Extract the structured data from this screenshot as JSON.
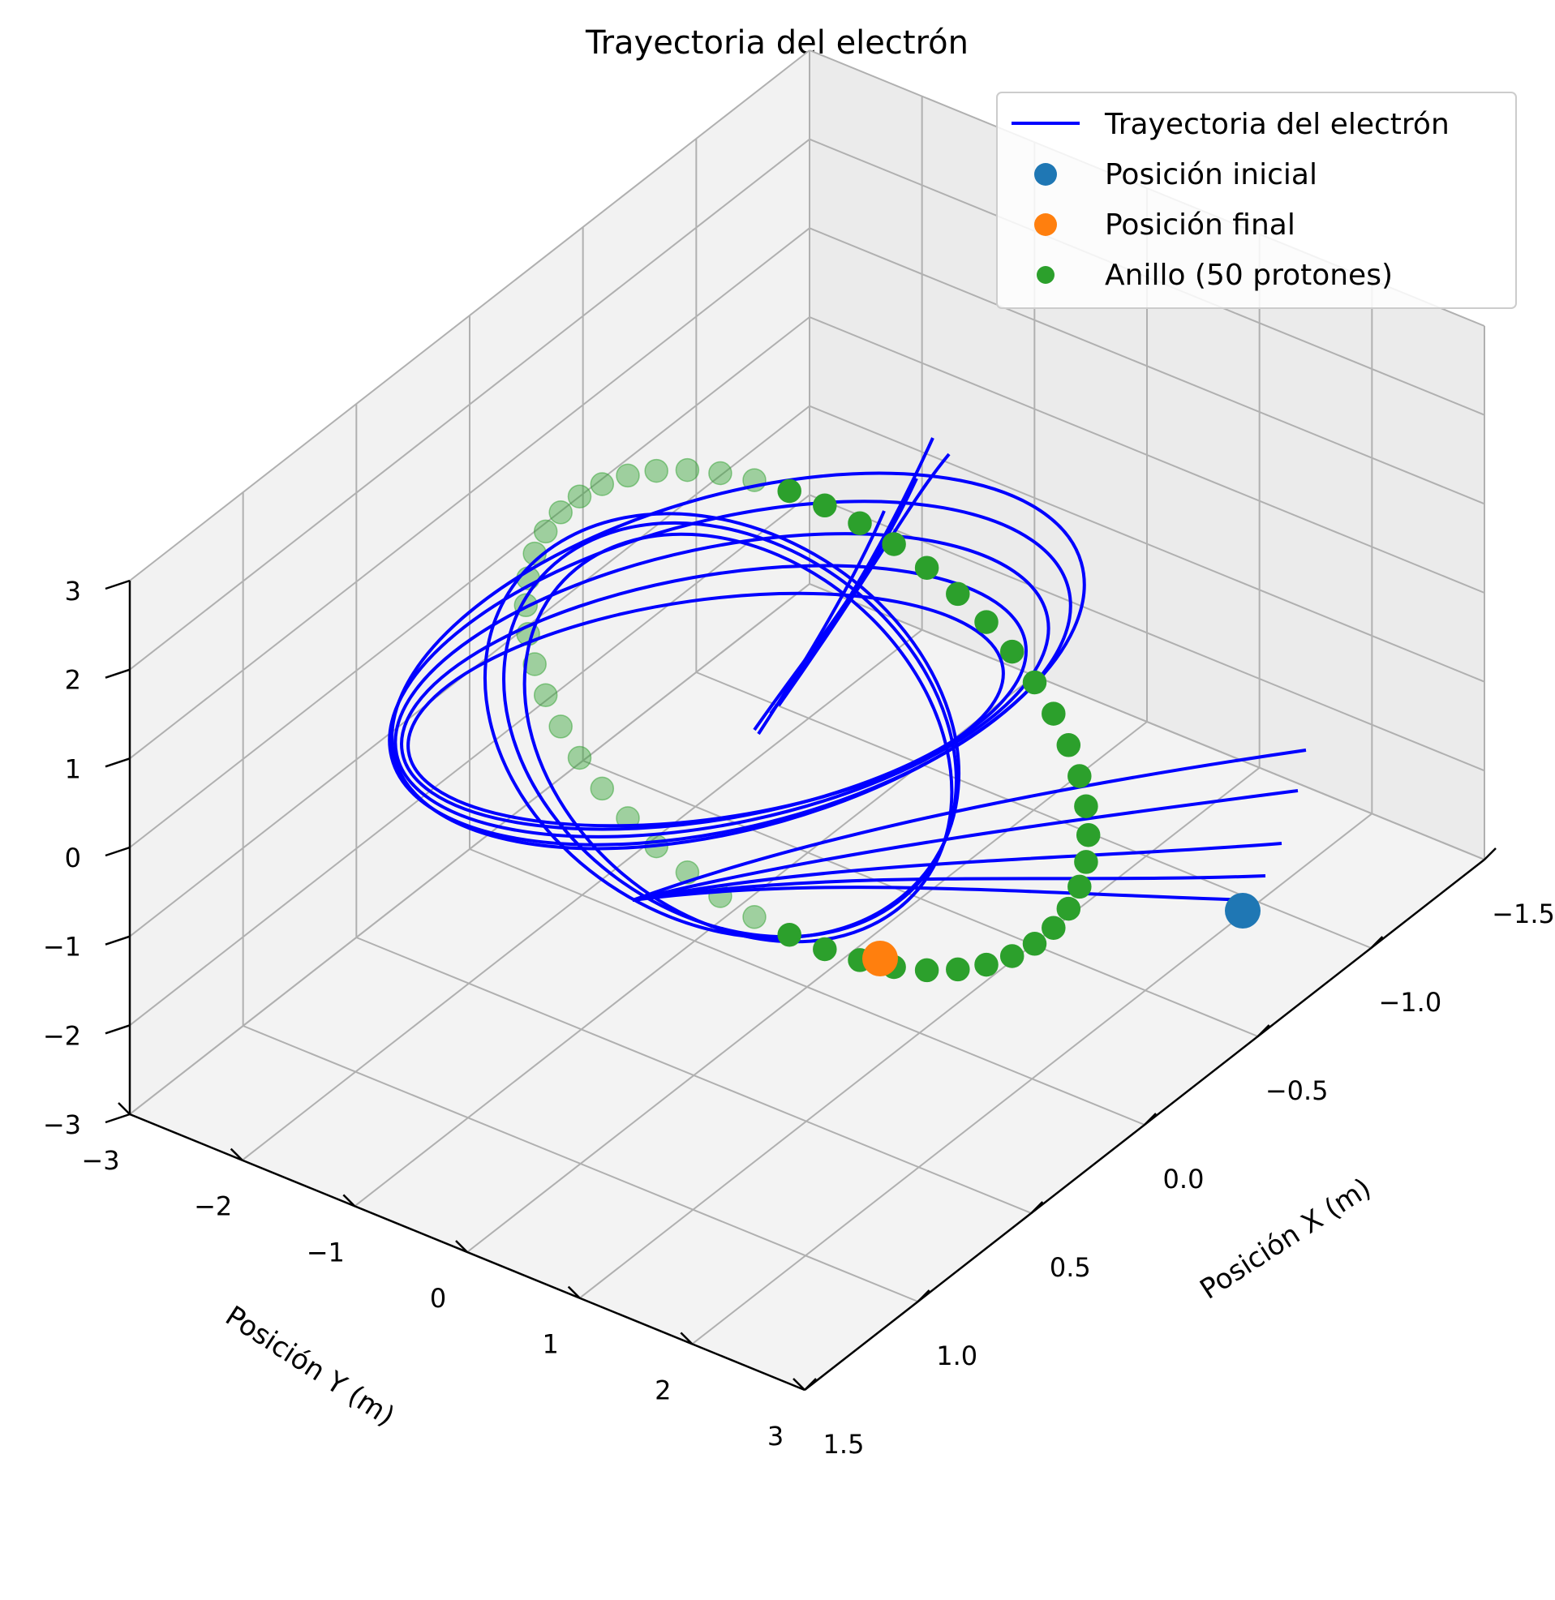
{
  "chart_data": {
    "type": "scatter",
    "projection": "3d",
    "title": "Trayectoria del electrón",
    "xlabel": "Posición X (m)",
    "ylabel": "Posición Y (m)",
    "zlabel": "",
    "xlim": [
      -1.5,
      1.5
    ],
    "ylim": [
      -3,
      3
    ],
    "zlim": [
      -3,
      3
    ],
    "grid": true,
    "legend_position": "top-right",
    "x_ticks": [
      {
        "label": "−1.5",
        "v": -1.5
      },
      {
        "label": "−1.0",
        "v": -1.0
      },
      {
        "label": "−0.5",
        "v": -0.5
      },
      {
        "label": "0.0",
        "v": 0.0
      },
      {
        "label": "0.5",
        "v": 0.5
      },
      {
        "label": "1.0",
        "v": 1.0
      },
      {
        "label": "1.5",
        "v": 1.5
      }
    ],
    "y_ticks": [
      {
        "label": "−3",
        "v": -3
      },
      {
        "label": "−2",
        "v": -2
      },
      {
        "label": "−1",
        "v": -1
      },
      {
        "label": "0",
        "v": 0
      },
      {
        "label": "1",
        "v": 1
      },
      {
        "label": "2",
        "v": 2
      },
      {
        "label": "3",
        "v": 3
      }
    ],
    "z_ticks": [
      {
        "label": "−3",
        "v": -3
      },
      {
        "label": "−2",
        "v": -2
      },
      {
        "label": "−1",
        "v": -1
      },
      {
        "label": "0",
        "v": 0
      },
      {
        "label": "1",
        "v": 1
      },
      {
        "label": "2",
        "v": 2
      },
      {
        "label": "3",
        "v": 3
      }
    ],
    "series": [
      {
        "name": "Trayectoria del electrón",
        "kind": "line",
        "color": "#0000ff"
      },
      {
        "name": "Posición inicial",
        "kind": "scatter",
        "color": "#1f77b4",
        "points": [
          [
            -1.35,
            0.0,
            -0.6
          ]
        ]
      },
      {
        "name": "Posición final",
        "kind": "scatter",
        "color": "#ff7f0e",
        "points": [
          [
            0.0,
            -0.05,
            -0.8
          ]
        ]
      },
      {
        "name": "Anillo (50 protones)",
        "kind": "scatter",
        "color": "#2ca02c",
        "ring": {
          "radius": 2.5,
          "count": 50,
          "plane": "y-z",
          "x": 0
        }
      }
    ]
  }
}
